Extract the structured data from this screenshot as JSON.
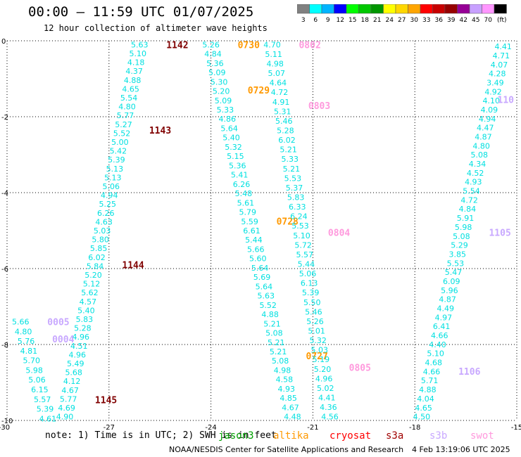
{
  "header": {
    "title": "00:00 – 11:59 UTC 01/07/2025",
    "subtitle": "12 hour collection of altimeter wave heights"
  },
  "colorbar": {
    "labels": [
      "3",
      "6",
      "9",
      "12",
      "15",
      "18",
      "21",
      "24",
      "27",
      "30",
      "33",
      "36",
      "39",
      "42",
      "45",
      "70",
      "(ft)"
    ],
    "colors": [
      "#808080",
      "#00ffff",
      "#00b4ff",
      "#0000ff",
      "#00ff00",
      "#00c800",
      "#009600",
      "#ffff00",
      "#ffd700",
      "#ffa500",
      "#ff0000",
      "#c80000",
      "#960000",
      "#960096",
      "#c8a0ff",
      "#ff96ff",
      "#000000"
    ]
  },
  "footer": {
    "note": "note:  1) Time is in UTC; 2) SWH is in feet",
    "credit": "NOAA/NESDIS Center for Satellite Applications and Research",
    "timestamp": "4 Feb 13:19:06 UTC 2025"
  },
  "satellites": [
    {
      "name": "jason3",
      "color": "#00a000"
    },
    {
      "name": "altika",
      "color": "#ff9900"
    },
    {
      "name": "cryosat",
      "color": "#ff0000"
    },
    {
      "name": "s3a",
      "color": "#a00000"
    },
    {
      "name": "s3b",
      "color": "#c8a8ff"
    },
    {
      "name": "swot",
      "color": "#ff99dd"
    }
  ],
  "chart_data": {
    "type": "scatter",
    "xlim": [
      -30,
      -15
    ],
    "ylim": [
      -10,
      0
    ],
    "grid": true,
    "x_ticks": [
      "-30",
      "-27",
      "-24",
      "-21",
      "-18",
      "-15"
    ],
    "y_ticks": [
      "0",
      "-2",
      "-4",
      "-6",
      "-8",
      "-10"
    ],
    "tracks": [
      {
        "satellite": "s3a",
        "color": "#00e0e0",
        "x0": -26.1,
        "y0": -0.1,
        "x1": -28.3,
        "y1": -9.9,
        "values": [
          "5.63",
          "5.10",
          "4.18",
          "4.37",
          "4.88",
          "4.65",
          "5.54",
          "4.80",
          "5.77",
          "5.27",
          "5.52",
          "5.00",
          "5.42",
          "5.39",
          "5.13",
          "5.13",
          "5.06",
          "4.94",
          "5.25",
          "6.26",
          "4.63",
          "5.03",
          "5.80",
          "5.85",
          "6.02",
          "5.84",
          "5.20",
          "5.12",
          "5.62",
          "4.57",
          "5.40",
          "5.83",
          "5.28",
          "4.96",
          "4.51",
          "4.96",
          "5.49",
          "5.68",
          "4.12",
          "4.67",
          "5.77",
          "4.69",
          "4.90"
        ],
        "times": [
          {
            "label": "1142",
            "y": -0.1
          },
          {
            "label": "1143",
            "y": -2.35
          },
          {
            "label": "1144",
            "y": -5.9
          },
          {
            "label": "1145",
            "y": -9.45
          }
        ],
        "time_color": "#800000"
      },
      {
        "satellite": "altika",
        "color": "#00e0e0",
        "x0": -24.0,
        "y0": -0.1,
        "x1": -21.6,
        "y1": -9.9,
        "values": [
          "5.26",
          "4.84",
          "5.36",
          "5.09",
          "5.30",
          "5.20",
          "5.09",
          "5.33",
          "4.86",
          "5.64",
          "5.40",
          "5.32",
          "5.15",
          "5.36",
          "5.41",
          "6.26",
          "5.48",
          "5.61",
          "5.79",
          "5.59",
          "6.61",
          "5.44",
          "5.66",
          "5.60",
          "5.64",
          "5.69",
          "5.64",
          "5.63",
          "5.52",
          "4.88",
          "5.21",
          "5.08",
          "5.21",
          "5.21",
          "5.08",
          "4.98",
          "4.58",
          "4.93",
          "4.85",
          "4.67",
          "4.48"
        ],
        "times": [
          {
            "label": "0730",
            "y": -0.1
          },
          {
            "label": "0729",
            "y": -1.3
          },
          {
            "label": "0728",
            "y": -4.75
          },
          {
            "label": "0727",
            "y": -8.3
          }
        ],
        "time_color": "#ff9900"
      },
      {
        "satellite": "swot",
        "color": "#00e0e0",
        "x0": -22.2,
        "y0": -0.1,
        "x1": -20.5,
        "y1": -9.9,
        "values": [
          "4.70",
          "5.11",
          "4.98",
          "5.07",
          "4.64",
          "4.72",
          "4.91",
          "5.31",
          "5.46",
          "5.28",
          "6.02",
          "5.21",
          "5.33",
          "5.21",
          "5.53",
          "5.37",
          "5.83",
          "6.33",
          "6.24",
          "5.53",
          "5.10",
          "5.72",
          "5.57",
          "5.44",
          "5.06",
          "6.13",
          "5.39",
          "5.50",
          "5.46",
          "5.26",
          "5.01",
          "5.32",
          "5.03",
          "5.19",
          "5.20",
          "4.96",
          "5.02",
          "4.41",
          "4.36",
          "4.56"
        ],
        "times": [
          {
            "label": "0802",
            "y": -0.1
          },
          {
            "label": "0803",
            "y": -1.7
          },
          {
            "label": "0804",
            "y": -5.05
          },
          {
            "label": "0805",
            "y": -8.6
          }
        ],
        "time_color": "#ff99dd"
      },
      {
        "satellite": "s3b",
        "color": "#00e0e0",
        "x0": -15.4,
        "y0": -0.15,
        "x1": -17.8,
        "y1": -9.9,
        "values": [
          "4.41",
          "4.71",
          "4.07",
          "4.28",
          "3.49",
          "4.92",
          "4.10",
          "4.09",
          "4.94",
          "4.47",
          "4.87",
          "4.80",
          "5.08",
          "4.34",
          "4.52",
          "4.93",
          "5.54",
          "4.72",
          "4.84",
          "5.91",
          "5.98",
          "5.08",
          "5.29",
          "3.85",
          "5.53",
          "5.47",
          "6.09",
          "5.96",
          "4.87",
          "4.49",
          "4.97",
          "6.41",
          "4.66",
          "4.40",
          "5.10",
          "4.68",
          "4.66",
          "5.71",
          "4.88",
          "4.04",
          "4.65",
          "4.50"
        ],
        "times": [
          {
            "label": "1105",
            "y": -5.05
          },
          {
            "label": "1106",
            "y": -8.7
          },
          {
            "label": "110",
            "y": -1.55
          }
        ],
        "time_color": "#c8a8ff"
      },
      {
        "satellite": "s3b",
        "color": "#00e0e0",
        "x0": -29.6,
        "y0": -7.4,
        "x1": -28.8,
        "y1": -9.95,
        "values": [
          "5.66",
          "4.80",
          "5.76",
          "4.81",
          "5.70",
          "5.98",
          "5.06",
          "6.15",
          "5.57",
          "5.39",
          "4.61"
        ],
        "times": [
          {
            "label": "0005",
            "y": -7.4
          },
          {
            "label": "0004",
            "y": -7.85
          }
        ],
        "time_color": "#c8a8ff"
      }
    ]
  }
}
